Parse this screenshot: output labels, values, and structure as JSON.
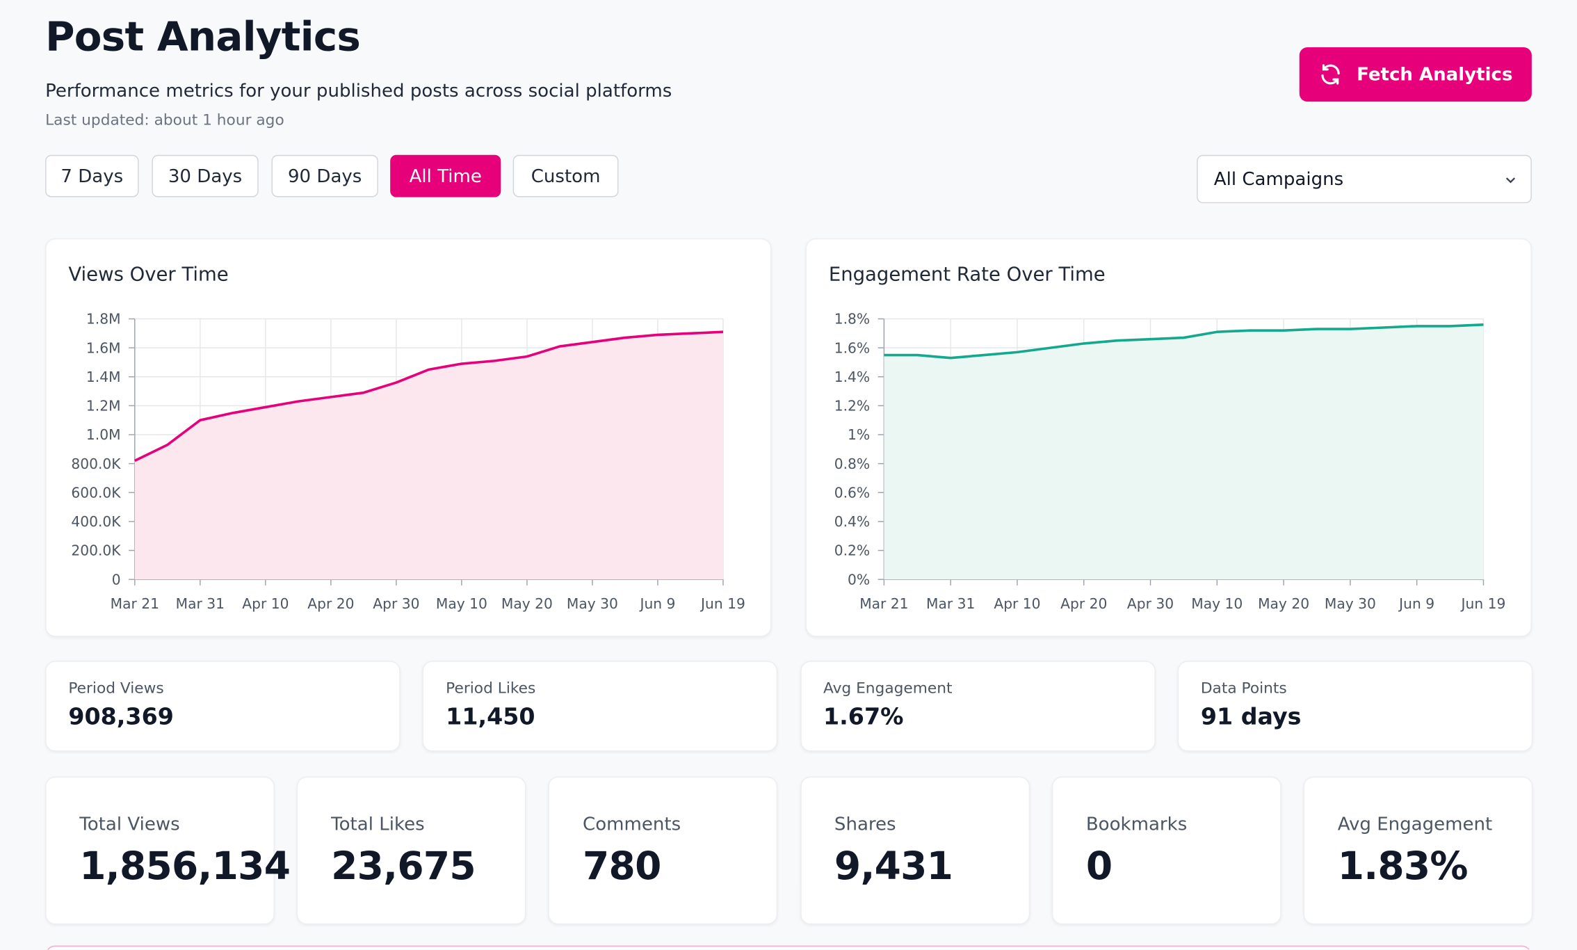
{
  "header": {
    "title": "Post Analytics",
    "subtitle": "Performance metrics for your published posts across social platforms",
    "updated": "Last updated: about 1 hour ago",
    "button": "Fetch Analytics"
  },
  "filters": [
    "7 Days",
    "30 Days",
    "90 Days",
    "All Time",
    "Custom"
  ],
  "active_filter": 3,
  "campaign": "All Campaigns",
  "summary": [
    {
      "label": "Period Views",
      "value": "908,369"
    },
    {
      "label": "Period Likes",
      "value": "11,450"
    },
    {
      "label": "Avg Engagement",
      "value": "1.67%"
    },
    {
      "label": "Data Points",
      "value": "91 days"
    }
  ],
  "totals": [
    {
      "label": "Total Views",
      "value": "1,856,134"
    },
    {
      "label": "Total Likes",
      "value": "23,675"
    },
    {
      "label": "Comments",
      "value": "780"
    },
    {
      "label": "Shares",
      "value": "9,431"
    },
    {
      "label": "Bookmarks",
      "value": "0"
    },
    {
      "label": "Avg Engagement",
      "value": "1.83%"
    }
  ],
  "chart_data": [
    {
      "type": "line",
      "title": "Views Over Time",
      "color": "#e6007a",
      "area_color": "#fde7ef",
      "grid": true,
      "categories": [
        "Mar 21",
        null,
        "Mar 31",
        null,
        "Apr 10",
        null,
        "Apr 20",
        null,
        "Apr 30",
        null,
        "May 10",
        null,
        "May 20",
        null,
        "May 30",
        null,
        "Jun 9",
        null,
        "Jun 19"
      ],
      "values": [
        820000,
        930000,
        1100000,
        1150000,
        1190000,
        1230000,
        1260000,
        1290000,
        1360000,
        1450000,
        1490000,
        1510000,
        1540000,
        1610000,
        1640000,
        1670000,
        1690000,
        1700000,
        1710000
      ],
      "ylim": [
        0,
        1800000
      ],
      "yticks": [
        0,
        {
          "value": 200000,
          "label": "200.0K"
        },
        {
          "value": 400000,
          "label": "400.0K"
        },
        {
          "value": 600000,
          "label": "600.0K"
        },
        {
          "value": 800000,
          "label": "800.0K"
        },
        {
          "value": 1000000,
          "label": "1.0M"
        },
        {
          "value": 1200000,
          "label": "1.2M"
        },
        {
          "value": 1400000,
          "label": "1.4M"
        },
        {
          "value": 1600000,
          "label": "1.6M"
        },
        {
          "value": 1800000,
          "label": "1.8M"
        }
      ]
    },
    {
      "type": "line",
      "title": "Engagement Rate Over Time",
      "color": "#14a88e",
      "area_color": "#eaf7f3",
      "grid": true,
      "categories": [
        "Mar 21",
        null,
        "Mar 31",
        null,
        "Apr 10",
        null,
        "Apr 20",
        null,
        "Apr 30",
        null,
        "May 10",
        null,
        "May 20",
        null,
        "May 30",
        null,
        "Jun 9",
        null,
        "Jun 19"
      ],
      "values": [
        1.55,
        1.55,
        1.53,
        1.55,
        1.57,
        1.6,
        1.63,
        1.65,
        1.66,
        1.67,
        1.71,
        1.72,
        1.72,
        1.73,
        1.73,
        1.74,
        1.75,
        1.75,
        1.76
      ],
      "ylim": [
        0,
        1.8
      ],
      "yticks": [
        {
          "value": 0,
          "label": "0%"
        },
        {
          "value": 0.2,
          "label": "0.2%"
        },
        {
          "value": 0.4,
          "label": "0.4%"
        },
        {
          "value": 0.6,
          "label": "0.6%"
        },
        {
          "value": 0.8,
          "label": "0.8%"
        },
        {
          "value": 1,
          "label": "1%"
        },
        {
          "value": 1.2,
          "label": "1.2%"
        },
        {
          "value": 1.4,
          "label": "1.4%"
        },
        {
          "value": 1.6,
          "label": "1.6%"
        },
        {
          "value": 1.8,
          "label": "1.8%"
        }
      ]
    }
  ]
}
